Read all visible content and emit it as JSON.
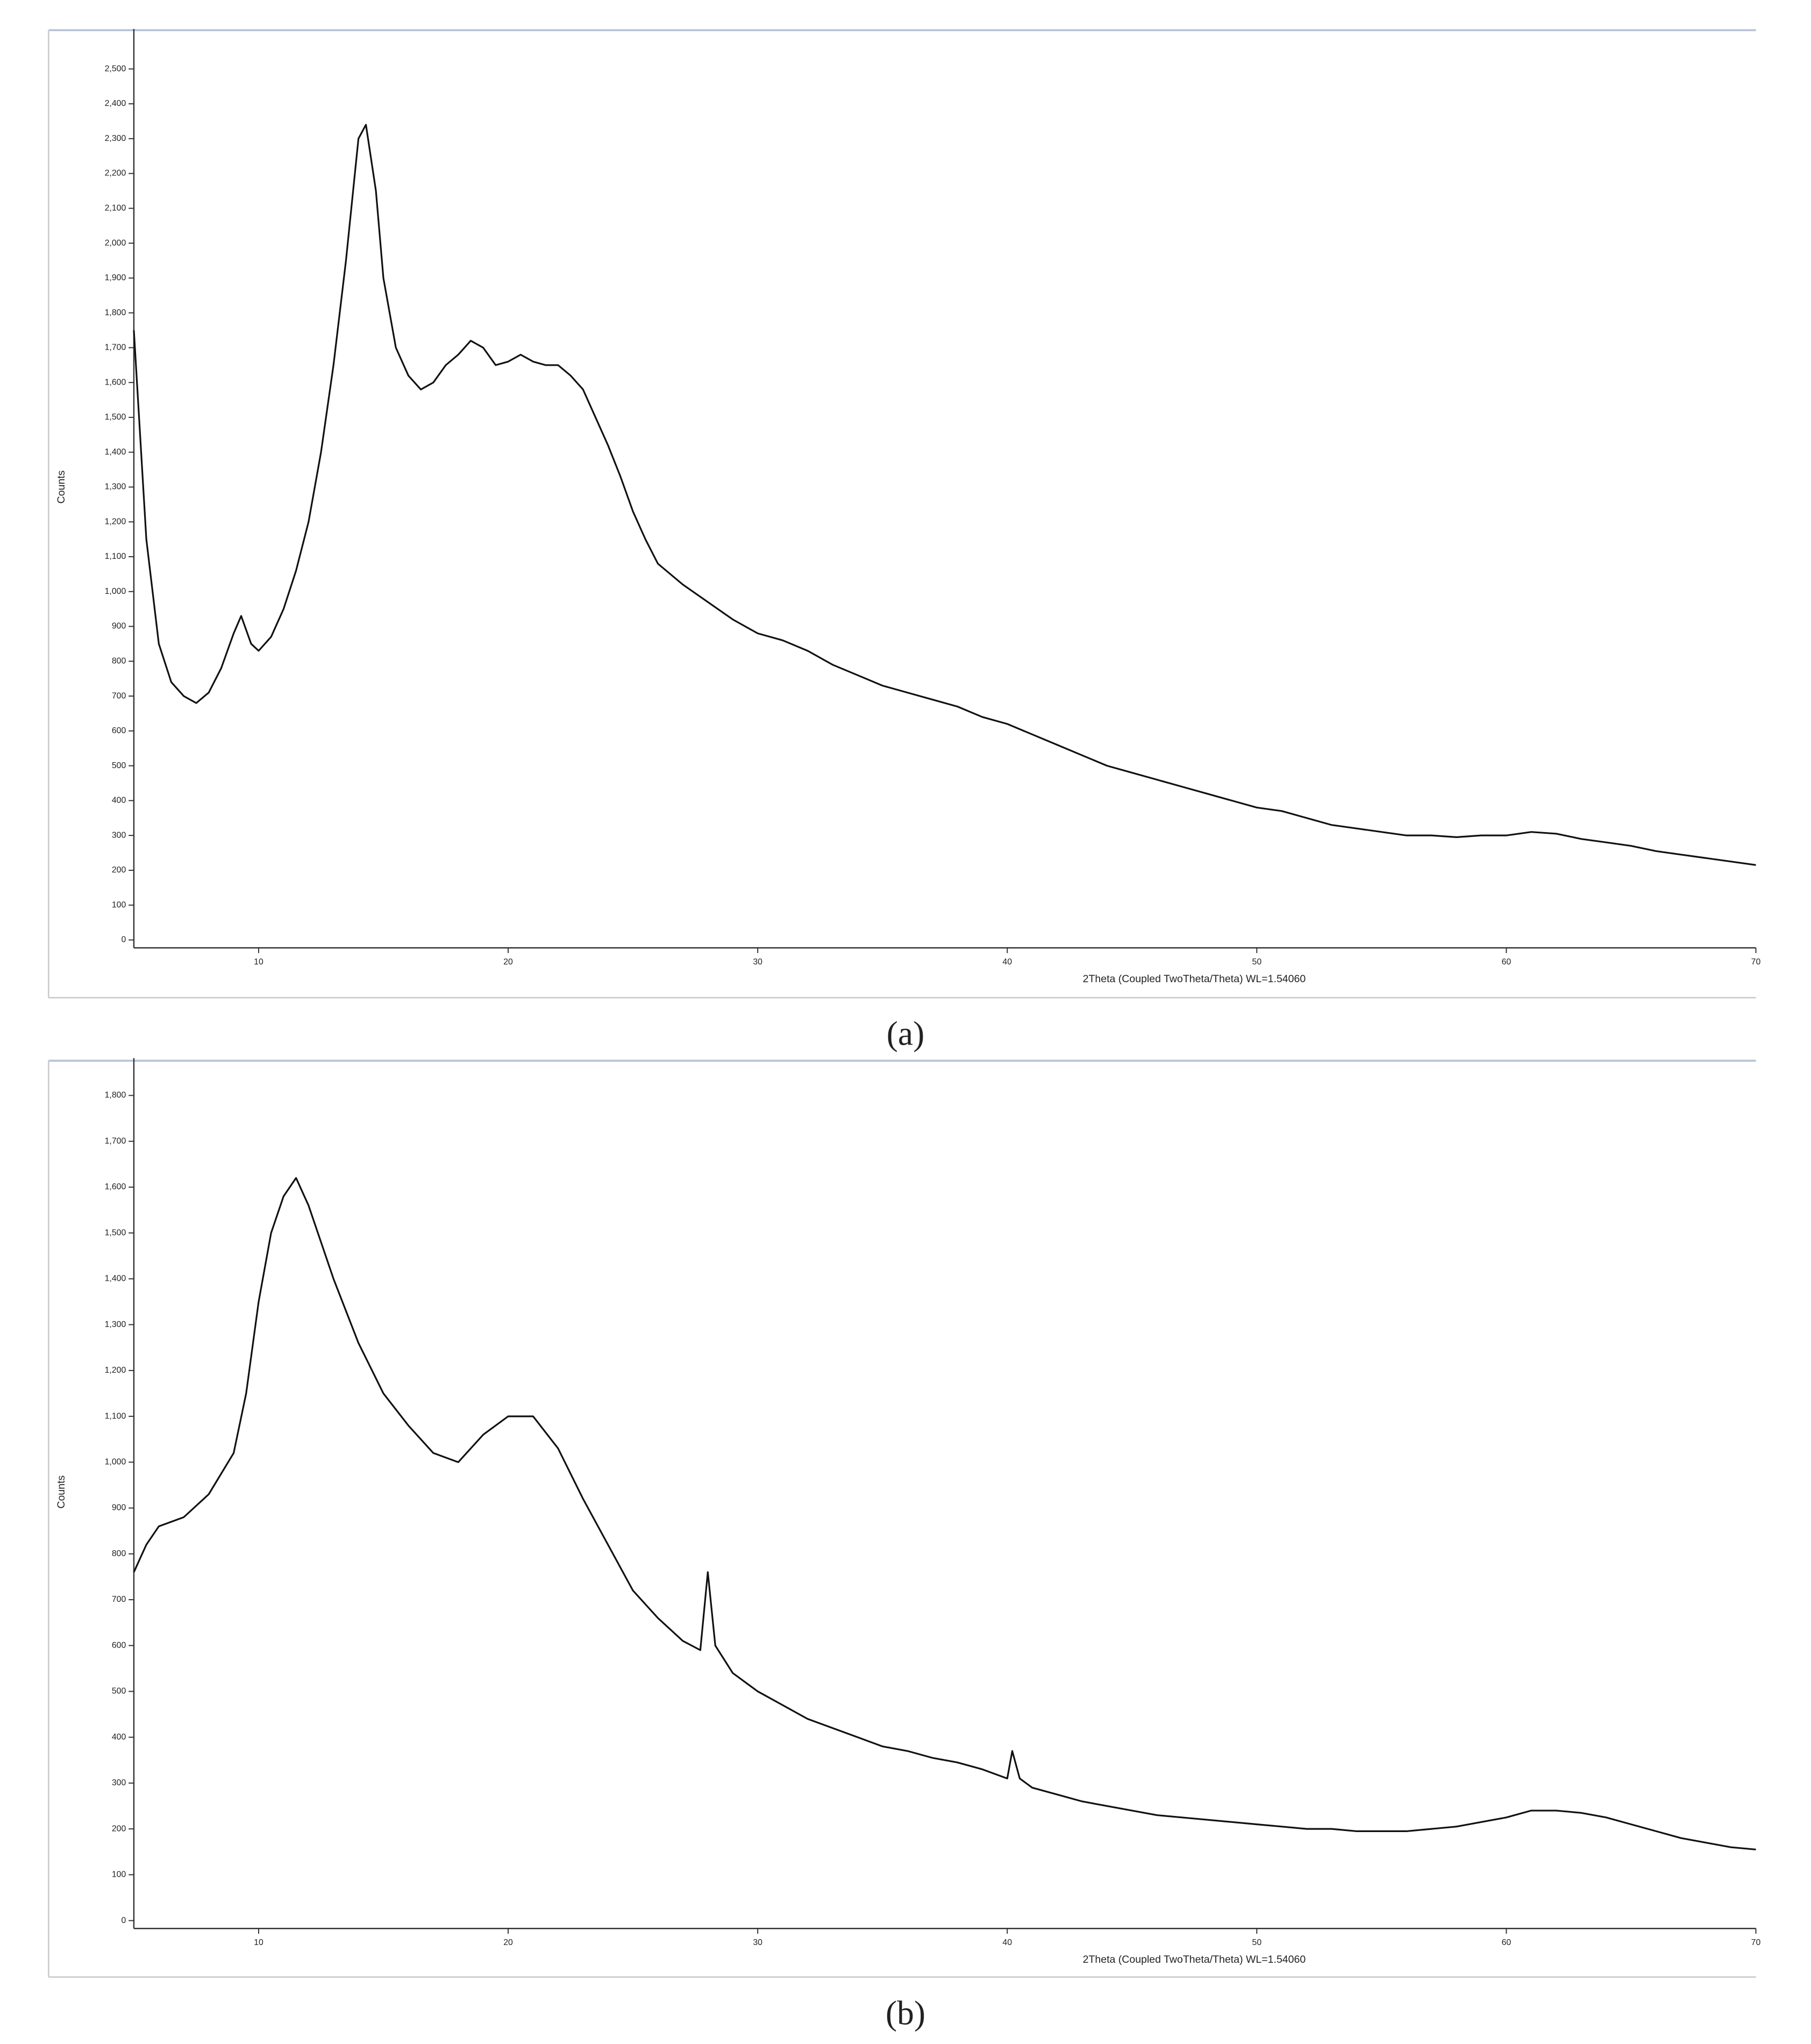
{
  "chart_data": [
    {
      "type": "line",
      "caption": "(a)",
      "x_label": "2Theta (Coupled TwoTheta/Theta) WL=1.54060",
      "y_label": "Counts",
      "x": [
        5,
        5.5,
        6,
        6.5,
        7,
        7.5,
        8,
        8.5,
        9,
        9.3,
        9.7,
        10,
        10.5,
        11,
        11.5,
        12,
        12.5,
        13,
        13.5,
        14,
        14.3,
        14.7,
        15,
        15.5,
        16,
        16.5,
        17,
        17.5,
        18,
        18.5,
        19,
        19.5,
        20,
        20.5,
        21,
        21.5,
        22,
        22.5,
        23,
        23.5,
        24,
        24.5,
        25,
        25.5,
        26,
        27,
        28,
        29,
        30,
        31,
        32,
        33,
        34,
        35,
        36,
        37,
        38,
        39,
        40,
        41,
        42,
        43,
        44,
        45,
        46,
        47,
        48,
        49,
        50,
        51,
        52,
        53,
        54,
        55,
        56,
        57,
        58,
        59,
        60,
        61,
        62,
        63,
        64,
        65,
        66,
        67,
        68,
        69,
        70
      ],
      "series": [
        {
          "color": "#111111",
          "values": [
            1750,
            1150,
            850,
            740,
            700,
            680,
            710,
            780,
            880,
            930,
            850,
            830,
            870,
            950,
            1060,
            1200,
            1400,
            1650,
            1950,
            2300,
            2340,
            2150,
            1900,
            1700,
            1620,
            1580,
            1600,
            1650,
            1680,
            1720,
            1700,
            1650,
            1660,
            1680,
            1660,
            1650,
            1650,
            1620,
            1580,
            1500,
            1420,
            1330,
            1230,
            1150,
            1080,
            1020,
            970,
            920,
            880,
            860,
            830,
            790,
            760,
            730,
            710,
            690,
            670,
            640,
            620,
            590,
            560,
            530,
            500,
            480,
            460,
            440,
            420,
            400,
            380,
            370,
            350,
            330,
            320,
            310,
            300,
            300,
            295,
            300,
            300,
            310,
            305,
            290,
            280,
            270,
            255,
            245,
            235,
            225,
            215
          ]
        }
      ],
      "xlim": [
        5,
        70
      ],
      "xticks": [
        10,
        20,
        30,
        40,
        50,
        60,
        70
      ],
      "ylim": [
        0,
        2600
      ],
      "yticks": [
        0,
        100,
        200,
        300,
        400,
        500,
        600,
        700,
        800,
        900,
        {
          "value": 1000,
          "label": "1,000"
        },
        {
          "value": 1100,
          "label": "1,100"
        },
        {
          "value": 1200,
          "label": "1,200"
        },
        {
          "value": 1300,
          "label": "1,300"
        },
        {
          "value": 1400,
          "label": "1,400"
        },
        {
          "value": 1500,
          "label": "1,500"
        },
        {
          "value": 1600,
          "label": "1,600"
        },
        {
          "value": 1700,
          "label": "1,700"
        },
        {
          "value": 1800,
          "label": "1,800"
        },
        {
          "value": 1900,
          "label": "1,900"
        },
        {
          "value": 2000,
          "label": "2,000"
        },
        {
          "value": 2100,
          "label": "2,100"
        },
        {
          "value": 2200,
          "label": "2,200"
        },
        {
          "value": 2300,
          "label": "2,300"
        },
        {
          "value": 2400,
          "label": "2,400"
        },
        {
          "value": 2500,
          "label": "2,500"
        }
      ]
    },
    {
      "type": "line",
      "caption": "(b)",
      "x_label": "2Theta (Coupled TwoTheta/Theta) WL=1.54060",
      "y_label": "Counts",
      "x": [
        5,
        5.5,
        6,
        7,
        8,
        9,
        9.5,
        10,
        10.5,
        11,
        11.5,
        12,
        12.5,
        13,
        14,
        15,
        16,
        17,
        18,
        19,
        20,
        21,
        22,
        23,
        24,
        25,
        26,
        27,
        27.7,
        28,
        28.3,
        29,
        30,
        31,
        32,
        33,
        34,
        35,
        36,
        37,
        38,
        39,
        40,
        40.2,
        40.5,
        41,
        42,
        43,
        44,
        45,
        46,
        47,
        48,
        49,
        50,
        51,
        52,
        53,
        54,
        55,
        56,
        57,
        58,
        59,
        60,
        61,
        62,
        63,
        64,
        65,
        66,
        67,
        68,
        69,
        70
      ],
      "series": [
        {
          "color": "#111111",
          "values": [
            760,
            820,
            860,
            880,
            930,
            1020,
            1150,
            1350,
            1500,
            1580,
            1620,
            1560,
            1480,
            1400,
            1260,
            1150,
            1080,
            1020,
            1000,
            1060,
            1100,
            1100,
            1030,
            920,
            820,
            720,
            660,
            610,
            590,
            760,
            600,
            540,
            500,
            470,
            440,
            420,
            400,
            380,
            370,
            355,
            345,
            330,
            310,
            370,
            310,
            290,
            275,
            260,
            250,
            240,
            230,
            225,
            220,
            215,
            210,
            205,
            200,
            200,
            195,
            195,
            195,
            200,
            205,
            215,
            225,
            240,
            240,
            235,
            225,
            210,
            195,
            180,
            170,
            160,
            155
          ]
        }
      ],
      "xlim": [
        5,
        70
      ],
      "xticks": [
        10,
        20,
        30,
        40,
        50,
        60,
        70
      ],
      "ylim": [
        0,
        1870
      ],
      "yticks": [
        0,
        100,
        200,
        300,
        400,
        500,
        600,
        700,
        800,
        900,
        {
          "value": 1000,
          "label": "1,000"
        },
        {
          "value": 1100,
          "label": "1,100"
        },
        {
          "value": 1200,
          "label": "1,200"
        },
        {
          "value": 1300,
          "label": "1,300"
        },
        {
          "value": 1400,
          "label": "1,400"
        },
        {
          "value": 1500,
          "label": "1,500"
        },
        {
          "value": 1600,
          "label": "1,600"
        },
        {
          "value": 1700,
          "label": "1,700"
        },
        {
          "value": 1800,
          "label": "1,800"
        }
      ]
    }
  ]
}
